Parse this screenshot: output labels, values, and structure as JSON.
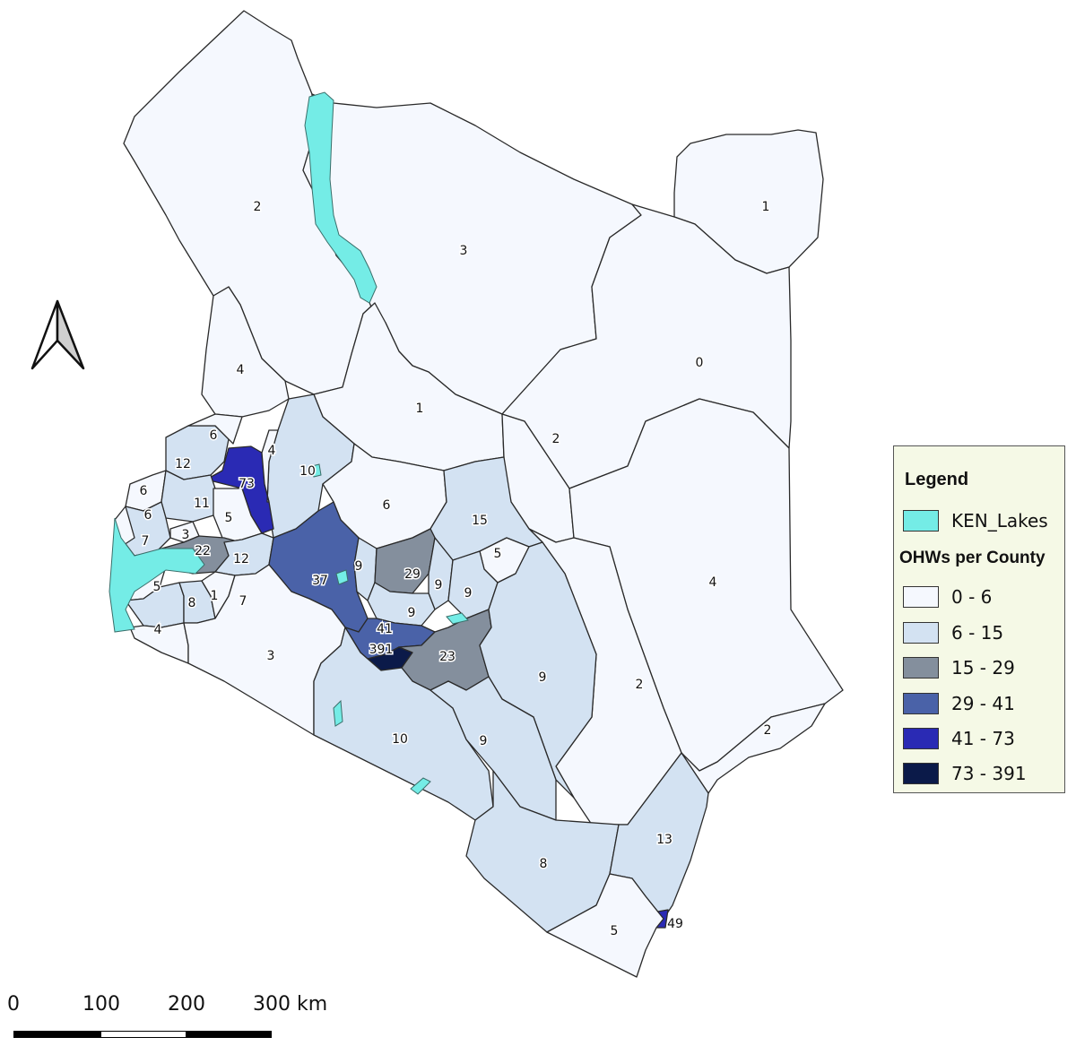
{
  "legend": {
    "title": "Legend",
    "lakes_label": "KEN_Lakes",
    "lakes_color": "#74ece6",
    "group_title": "OHWs per County",
    "classes": [
      {
        "range": "0 - 6",
        "color": "#f5f8fe"
      },
      {
        "range": "6 - 15",
        "color": "#d3e2f2"
      },
      {
        "range": "15 - 29",
        "color": "#848f9d"
      },
      {
        "range": "29 - 41",
        "color": "#4a62a8"
      },
      {
        "range": "41 - 73",
        "color": "#2a2ab4"
      },
      {
        "range": "73 - 391",
        "color": "#0b1a49"
      }
    ]
  },
  "scale_bar": {
    "labels": [
      "0",
      "100",
      "200",
      "300 km"
    ]
  },
  "north_arrow": "north-arrow-icon",
  "county_values": {
    "turkana": "2",
    "marsabit": "3",
    "mandera": "1",
    "wajir": "0",
    "samburu": "1",
    "isiolo": "2",
    "west_pokot": "4",
    "garissa": "4",
    "tana_river": "2",
    "lamu": "2",
    "baringo": "10",
    "laikipia": "6",
    "meru": "15",
    "tharaka_nithi": "5",
    "trans_nzoia": "12",
    "elgeyo_marakwet": "73",
    "marakwet_north": "4",
    "mt_elgon": "6",
    "bungoma": "6",
    "uasin_gishu": "11",
    "nandi": "5",
    "kakamega": "7",
    "vihiga": "3",
    "kisumu": "22",
    "kericho": "12",
    "nakuru": "37",
    "nyandarua": "9",
    "nyeri": "29",
    "kirinyaga": "9",
    "embu": "9",
    "muranga": "9",
    "siaya": "5",
    "busia": "6",
    "homa_bay": "8",
    "kisii": "1",
    "nyamira": "7",
    "migori": "4",
    "narok": "3",
    "kiambu": "41",
    "nairobi": "391",
    "machakos": "23",
    "kitui": "9",
    "kajiado": "10",
    "makueni": "9",
    "taita_taveta": "8",
    "kilifi": "13",
    "mombasa": "49",
    "kwale": "5"
  }
}
